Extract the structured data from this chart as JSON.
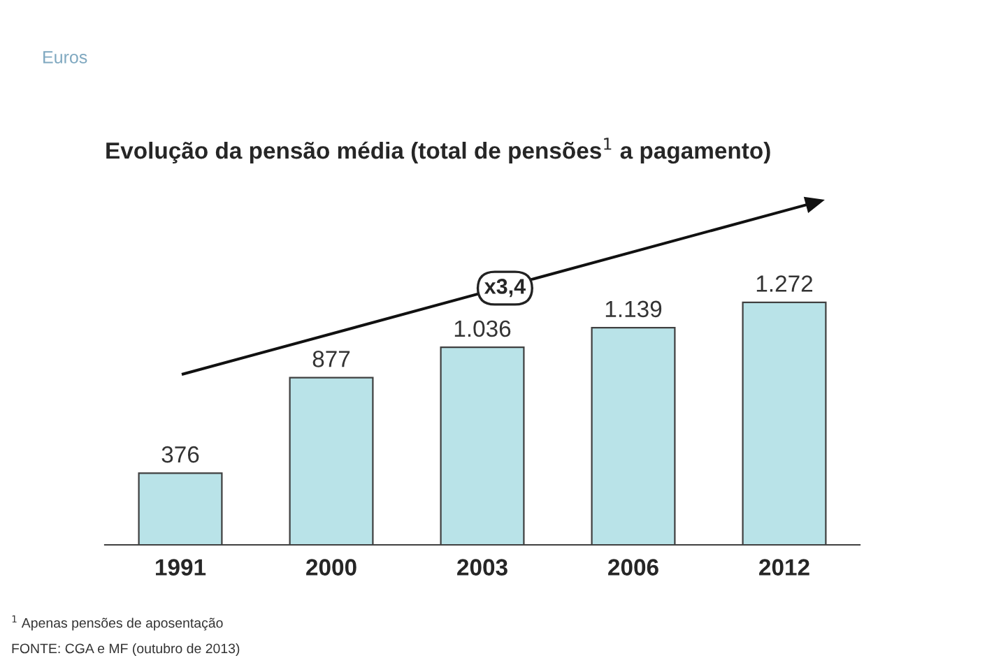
{
  "chart_data": {
    "type": "bar",
    "title": "Evolução da pensão média (total de pensões$^{1}$ a pagamento)",
    "subtitle": "Euros",
    "categories": [
      "1991",
      "2000",
      "2003",
      "2006",
      "2012"
    ],
    "values": [
      376,
      877,
      1036,
      1139,
      1272
    ],
    "value_labels": [
      "376",
      "877",
      "1.036",
      "1.139",
      "1.272"
    ],
    "color": "#b9e3e8",
    "annotations": [
      "x3,4",
      "$^{1}$ Apenas pensões de aposentação",
      "FONTE: CGA e MF (outubro de 2013)"
    ],
    "grid": false,
    "legend": false
  }
}
